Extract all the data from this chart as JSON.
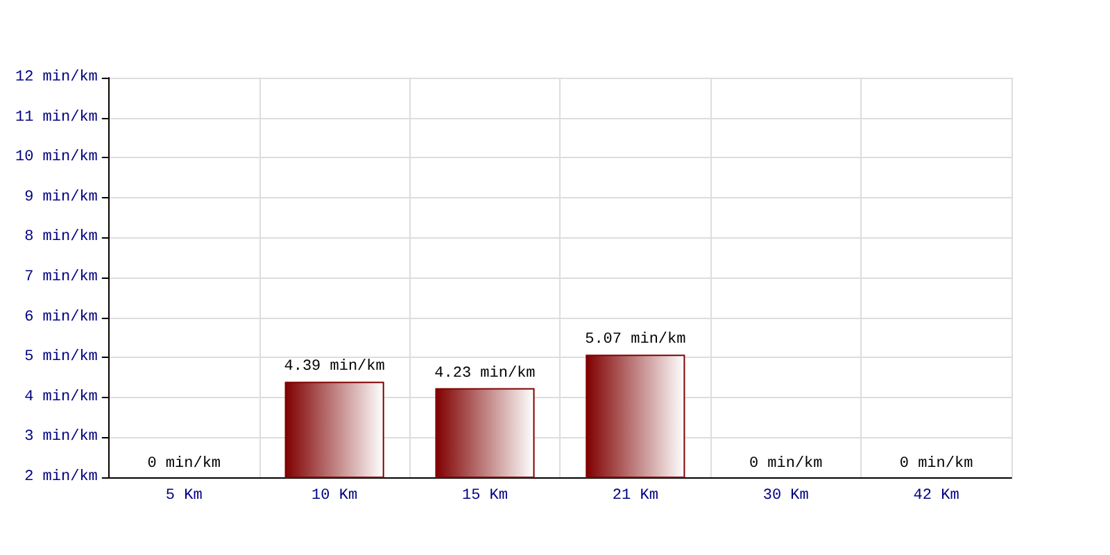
{
  "chart_data": {
    "type": "bar",
    "categories": [
      "5 Km",
      "10 Km",
      "15 Km",
      "21 Km",
      "30 Km",
      "42 Km"
    ],
    "values": [
      null,
      4.39,
      4.23,
      5.07,
      null,
      null
    ],
    "value_labels": [
      "0 min/km",
      "4.39 min/km",
      "4.23 min/km",
      "5.07 min/km",
      "0 min/km",
      "0 min/km"
    ],
    "color": "#800000",
    "ylim": [
      2,
      12
    ],
    "yticks": [
      {
        "value": 2,
        "label": "2 min/km"
      },
      {
        "value": 3,
        "label": "3 min/km"
      },
      {
        "value": 4,
        "label": "4 min/km"
      },
      {
        "value": 5,
        "label": "5 min/km"
      },
      {
        "value": 6,
        "label": "6 min/km"
      },
      {
        "value": 7,
        "label": "7 min/km"
      },
      {
        "value": 8,
        "label": "8 min/km"
      },
      {
        "value": 9,
        "label": "9 min/km"
      },
      {
        "value": 10,
        "label": "10 min/km"
      },
      {
        "value": 11,
        "label": "11 min/km"
      },
      {
        "value": 12,
        "label": "12 min/km"
      }
    ],
    "grid": true
  }
}
